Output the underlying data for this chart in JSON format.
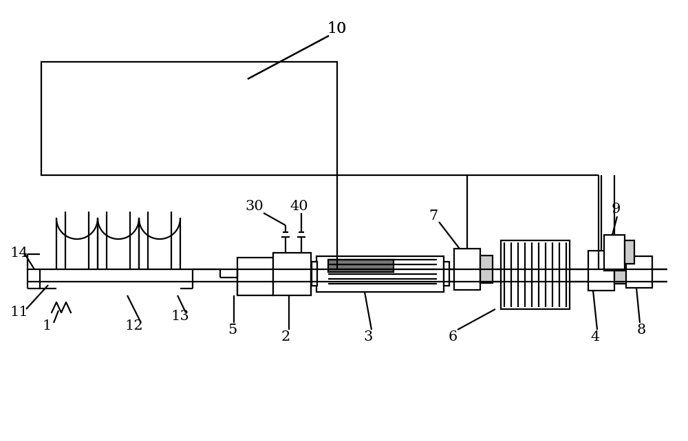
{
  "bg_color": "#ffffff",
  "lc": "#000000",
  "lw": 1.6,
  "fig_w": 10.0,
  "fig_h": 6.42,
  "dpi": 100
}
